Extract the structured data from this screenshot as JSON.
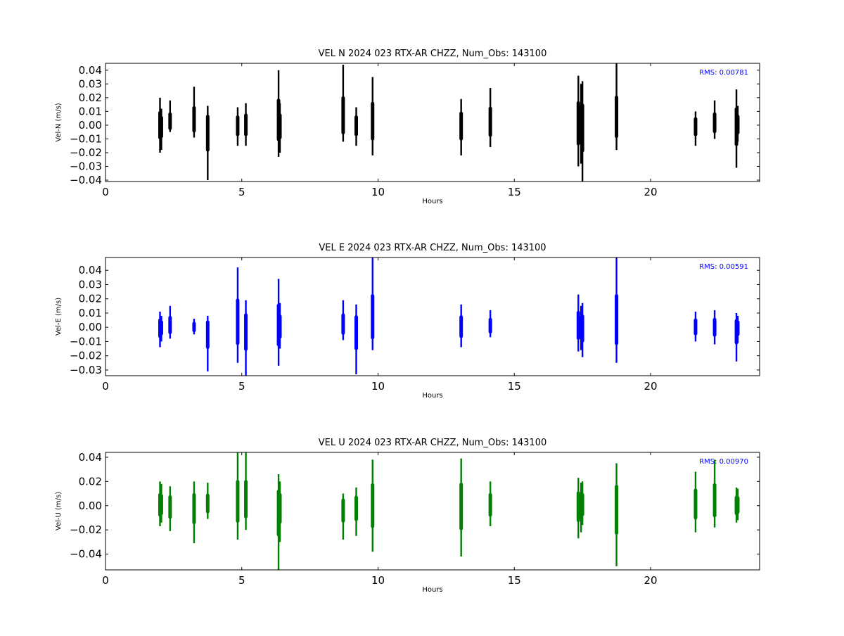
{
  "chart_data": [
    {
      "type": "scatter",
      "title": "VEL N 2024 023 RTX-AR  CHZZ, Num_Obs: 143100",
      "xlabel": "Hours",
      "ylabel": "Vel-N (m/s)",
      "xlim": [
        0,
        24
      ],
      "ylim": [
        -0.041,
        0.045
      ],
      "xticks": [
        0,
        5,
        10,
        15,
        20
      ],
      "xtick_labels": [
        "0",
        "5",
        "10",
        "15",
        "20"
      ],
      "yticks": [
        -0.04,
        -0.03,
        -0.02,
        -0.01,
        0.0,
        0.01,
        0.02,
        0.03,
        0.04
      ],
      "ytick_labels": [
        "−0.04",
        "−0.03",
        "−0.02",
        "−0.01",
        "0.00",
        "0.01",
        "0.02",
        "0.03",
        "0.04"
      ],
      "rms_label": "RMS:  0.00781",
      "color": "#000000",
      "segments": [
        {
          "x": 2.0,
          "ymin": -0.02,
          "ymax": 0.02
        },
        {
          "x": 2.05,
          "ymin": -0.018,
          "ymax": 0.012
        },
        {
          "x": 2.37,
          "ymin": -0.005,
          "ymax": 0.018
        },
        {
          "x": 3.25,
          "ymin": -0.009,
          "ymax": 0.028
        },
        {
          "x": 3.75,
          "ymin": -0.04,
          "ymax": 0.014
        },
        {
          "x": 4.85,
          "ymin": -0.015,
          "ymax": 0.013
        },
        {
          "x": 5.15,
          "ymin": -0.015,
          "ymax": 0.016
        },
        {
          "x": 6.35,
          "ymin": -0.023,
          "ymax": 0.04
        },
        {
          "x": 6.4,
          "ymin": -0.02,
          "ymax": 0.016
        },
        {
          "x": 8.72,
          "ymin": -0.012,
          "ymax": 0.044
        },
        {
          "x": 9.2,
          "ymin": -0.015,
          "ymax": 0.013
        },
        {
          "x": 9.8,
          "ymin": -0.022,
          "ymax": 0.035
        },
        {
          "x": 13.05,
          "ymin": -0.022,
          "ymax": 0.019
        },
        {
          "x": 14.12,
          "ymin": -0.016,
          "ymax": 0.027
        },
        {
          "x": 17.35,
          "ymin": -0.03,
          "ymax": 0.036
        },
        {
          "x": 17.45,
          "ymin": -0.028,
          "ymax": 0.03
        },
        {
          "x": 17.5,
          "ymin": -0.041,
          "ymax": 0.032
        },
        {
          "x": 18.75,
          "ymin": -0.018,
          "ymax": 0.045
        },
        {
          "x": 21.65,
          "ymin": -0.015,
          "ymax": 0.01
        },
        {
          "x": 22.35,
          "ymin": -0.01,
          "ymax": 0.018
        },
        {
          "x": 23.15,
          "ymin": -0.031,
          "ymax": 0.026
        },
        {
          "x": 23.2,
          "ymin": -0.012,
          "ymax": 0.014
        }
      ]
    },
    {
      "type": "scatter",
      "title": "VEL E 2024 023 RTX-AR  CHZZ, Num_Obs: 143100",
      "xlabel": "Hours",
      "ylabel": "Vel-E (m/s)",
      "xlim": [
        0,
        24
      ],
      "ylim": [
        -0.034,
        0.049
      ],
      "xticks": [
        0,
        5,
        10,
        15,
        20
      ],
      "xtick_labels": [
        "0",
        "5",
        "10",
        "15",
        "20"
      ],
      "yticks": [
        -0.03,
        -0.02,
        -0.01,
        0.0,
        0.01,
        0.02,
        0.03,
        0.04
      ],
      "ytick_labels": [
        "−0.03",
        "−0.02",
        "−0.01",
        "0.00",
        "0.01",
        "0.02",
        "0.03",
        "0.04"
      ],
      "rms_label": "RMS:  0.00591",
      "color": "#0000ff",
      "segments": [
        {
          "x": 2.0,
          "ymin": -0.014,
          "ymax": 0.011
        },
        {
          "x": 2.05,
          "ymin": -0.01,
          "ymax": 0.008
        },
        {
          "x": 2.37,
          "ymin": -0.008,
          "ymax": 0.015
        },
        {
          "x": 3.25,
          "ymin": -0.005,
          "ymax": 0.006
        },
        {
          "x": 3.75,
          "ymin": -0.031,
          "ymax": 0.008
        },
        {
          "x": 4.85,
          "ymin": -0.025,
          "ymax": 0.042
        },
        {
          "x": 5.15,
          "ymin": -0.034,
          "ymax": 0.019
        },
        {
          "x": 6.35,
          "ymin": -0.027,
          "ymax": 0.034
        },
        {
          "x": 6.4,
          "ymin": -0.015,
          "ymax": 0.017
        },
        {
          "x": 8.72,
          "ymin": -0.009,
          "ymax": 0.019
        },
        {
          "x": 9.2,
          "ymin": -0.033,
          "ymax": 0.016
        },
        {
          "x": 9.8,
          "ymin": -0.016,
          "ymax": 0.049
        },
        {
          "x": 13.05,
          "ymin": -0.014,
          "ymax": 0.016
        },
        {
          "x": 14.12,
          "ymin": -0.007,
          "ymax": 0.012
        },
        {
          "x": 17.35,
          "ymin": -0.017,
          "ymax": 0.023
        },
        {
          "x": 17.45,
          "ymin": -0.016,
          "ymax": 0.015
        },
        {
          "x": 17.5,
          "ymin": -0.021,
          "ymax": 0.017
        },
        {
          "x": 18.75,
          "ymin": -0.025,
          "ymax": 0.049
        },
        {
          "x": 21.65,
          "ymin": -0.01,
          "ymax": 0.011
        },
        {
          "x": 22.35,
          "ymin": -0.012,
          "ymax": 0.012
        },
        {
          "x": 23.15,
          "ymin": -0.024,
          "ymax": 0.01
        },
        {
          "x": 23.2,
          "ymin": -0.011,
          "ymax": 0.008
        }
      ]
    },
    {
      "type": "scatter",
      "title": "VEL U 2024 023 RTX-AR  CHZZ, Num_Obs: 143100",
      "xlabel": "Hours",
      "ylabel": "Vel-U (m/s)",
      "xlim": [
        0,
        24
      ],
      "ylim": [
        -0.053,
        0.044
      ],
      "xticks": [
        0,
        5,
        10,
        15,
        20
      ],
      "xtick_labels": [
        "0",
        "5",
        "10",
        "15",
        "20"
      ],
      "yticks": [
        -0.04,
        -0.02,
        0.0,
        0.02,
        0.04
      ],
      "ytick_labels": [
        "−0.04",
        "−0.02",
        "0.00",
        "0.02",
        "0.04"
      ],
      "rms_label": "RMS:  0.00970",
      "color": "#008000",
      "segments": [
        {
          "x": 2.0,
          "ymin": -0.017,
          "ymax": 0.02
        },
        {
          "x": 2.05,
          "ymin": -0.014,
          "ymax": 0.018
        },
        {
          "x": 2.37,
          "ymin": -0.021,
          "ymax": 0.016
        },
        {
          "x": 3.25,
          "ymin": -0.031,
          "ymax": 0.02
        },
        {
          "x": 3.75,
          "ymin": -0.011,
          "ymax": 0.019
        },
        {
          "x": 4.85,
          "ymin": -0.028,
          "ymax": 0.044
        },
        {
          "x": 5.15,
          "ymin": -0.02,
          "ymax": 0.044
        },
        {
          "x": 6.35,
          "ymin": -0.053,
          "ymax": 0.026
        },
        {
          "x": 6.4,
          "ymin": -0.03,
          "ymax": 0.02
        },
        {
          "x": 8.72,
          "ymin": -0.028,
          "ymax": 0.01
        },
        {
          "x": 9.2,
          "ymin": -0.025,
          "ymax": 0.015
        },
        {
          "x": 9.8,
          "ymin": -0.038,
          "ymax": 0.038
        },
        {
          "x": 13.05,
          "ymin": -0.042,
          "ymax": 0.039
        },
        {
          "x": 14.12,
          "ymin": -0.017,
          "ymax": 0.02
        },
        {
          "x": 17.35,
          "ymin": -0.027,
          "ymax": 0.023
        },
        {
          "x": 17.45,
          "ymin": -0.022,
          "ymax": 0.019
        },
        {
          "x": 17.5,
          "ymin": -0.016,
          "ymax": 0.02
        },
        {
          "x": 18.75,
          "ymin": -0.05,
          "ymax": 0.035
        },
        {
          "x": 21.65,
          "ymin": -0.022,
          "ymax": 0.028
        },
        {
          "x": 22.35,
          "ymin": -0.018,
          "ymax": 0.038
        },
        {
          "x": 23.15,
          "ymin": -0.014,
          "ymax": 0.015
        },
        {
          "x": 23.2,
          "ymin": -0.012,
          "ymax": 0.014
        }
      ]
    }
  ]
}
